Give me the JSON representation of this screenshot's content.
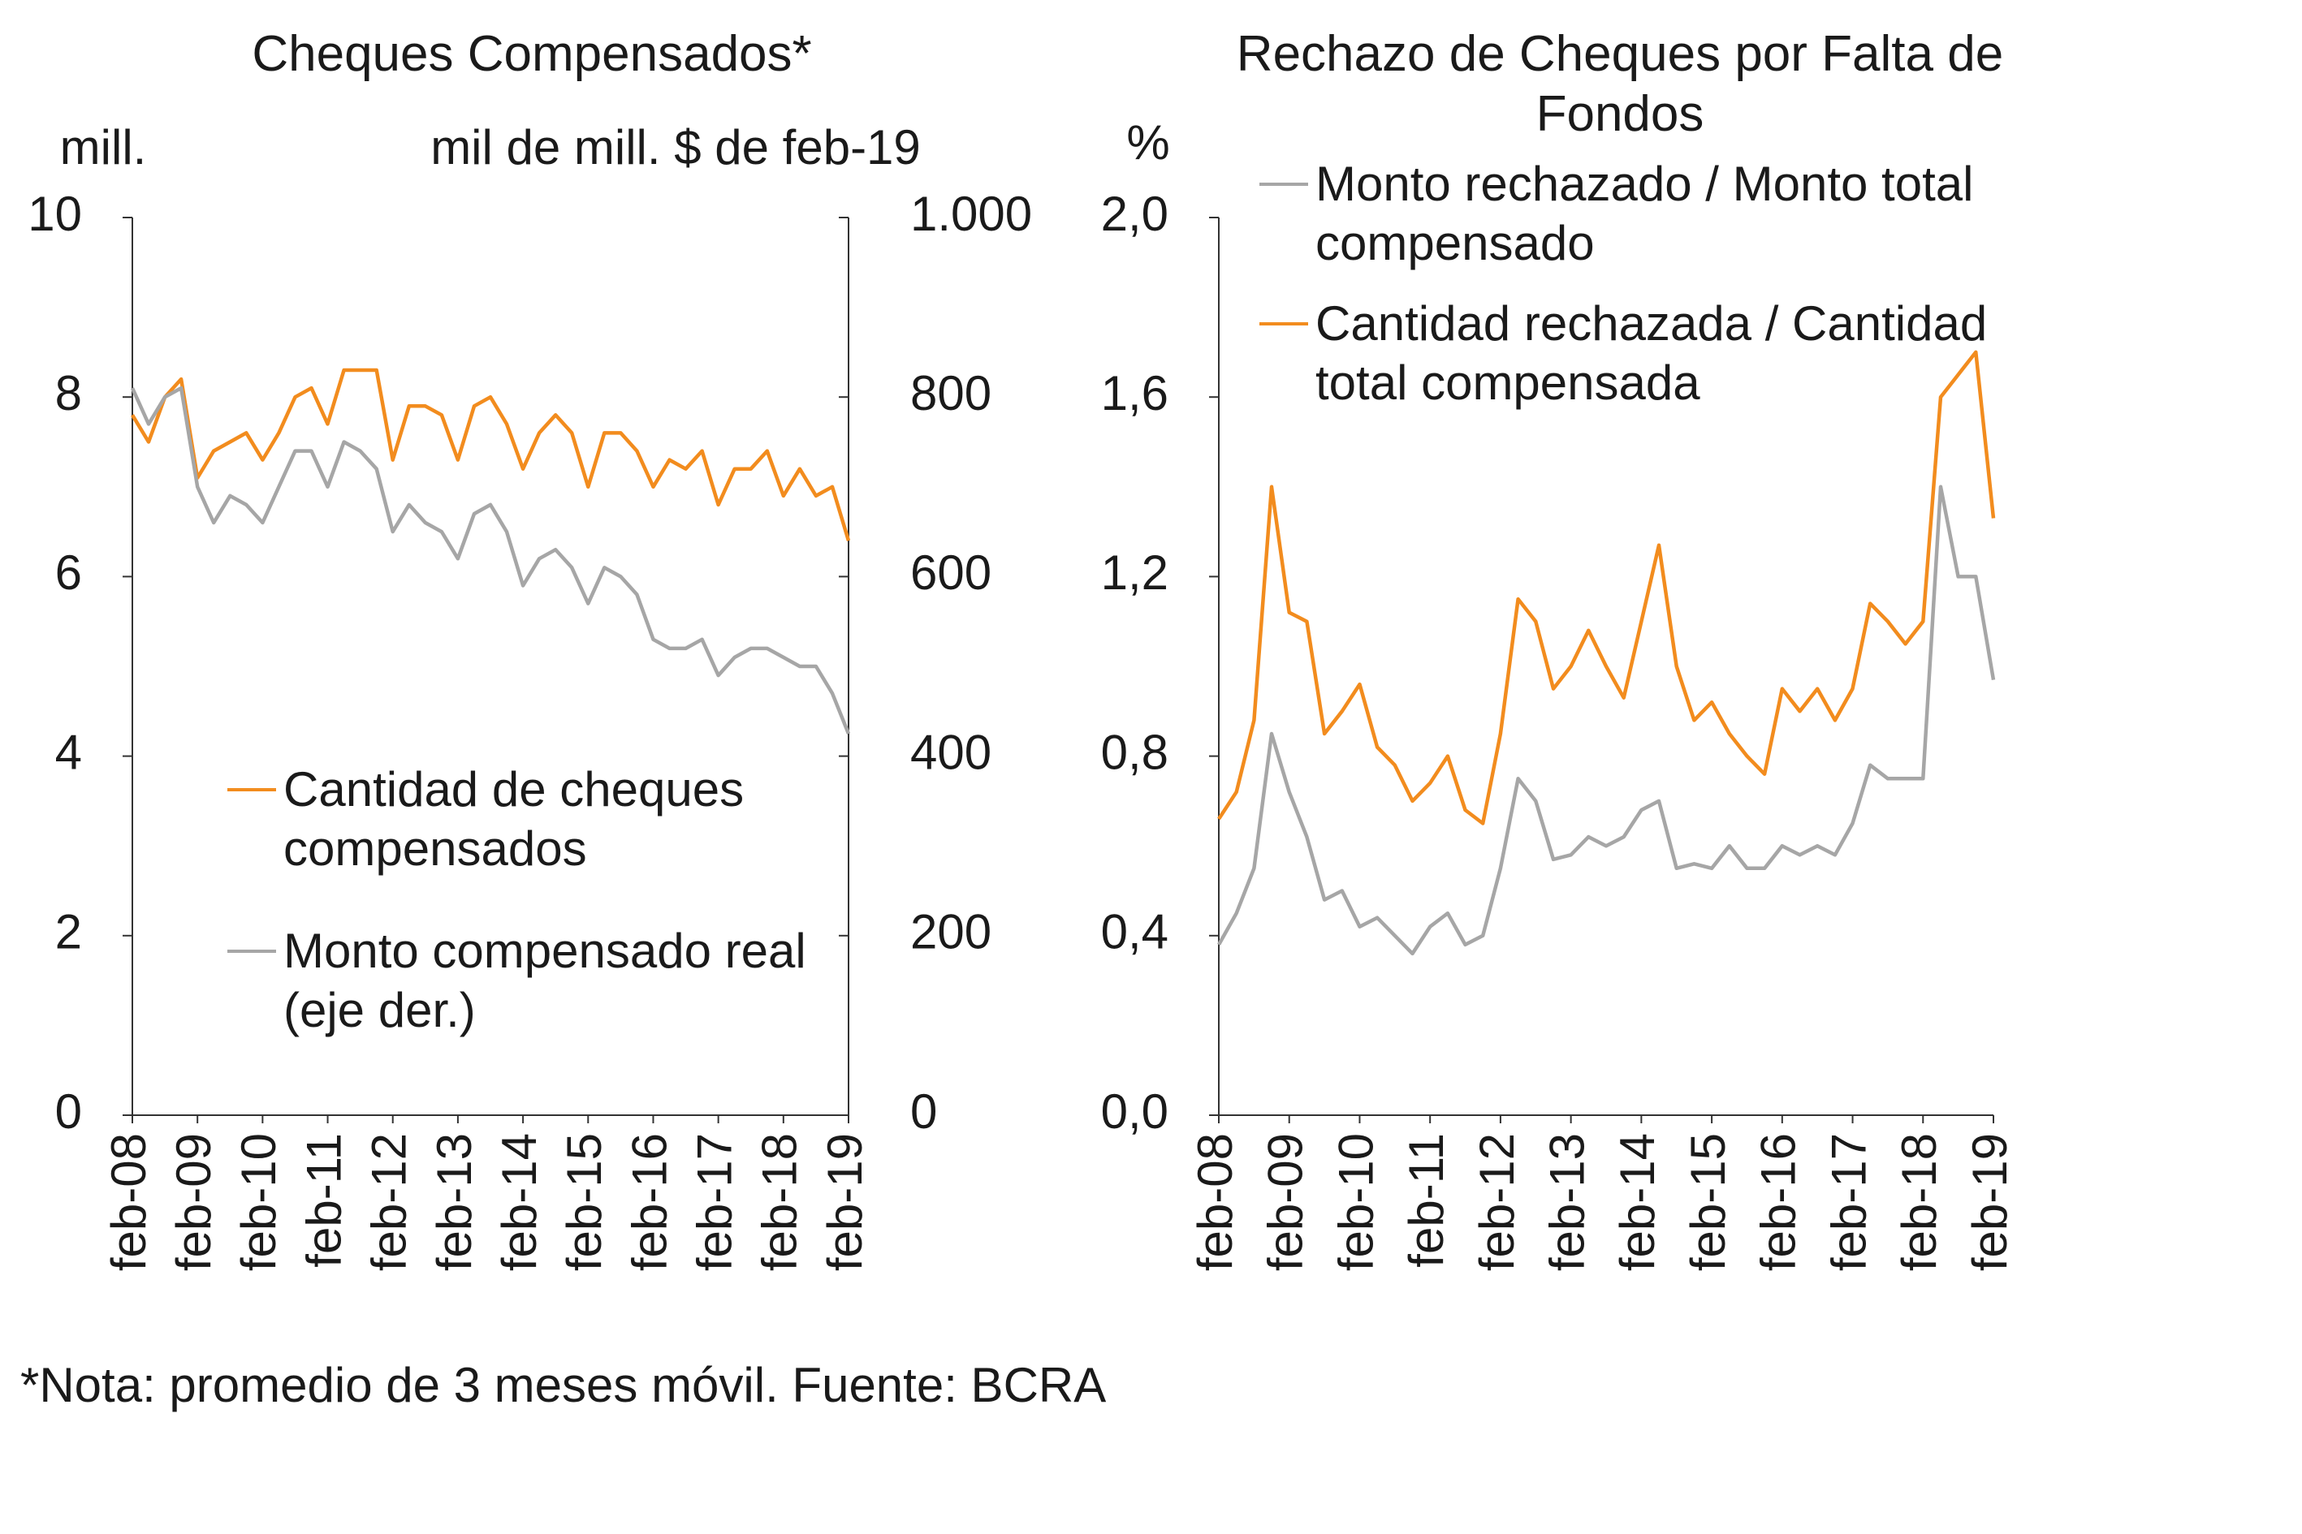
{
  "chart_data": [
    {
      "type": "line",
      "title": "Cheques Compensados*",
      "y_label": "mill.",
      "y2_label": "mil de mill. $ de feb-19",
      "categories": [
        "feb-08",
        null,
        null,
        null,
        "feb-09",
        null,
        null,
        null,
        "feb-10",
        null,
        null,
        null,
        "feb-11",
        null,
        null,
        null,
        "feb-12",
        null,
        null,
        null,
        "feb-13",
        null,
        null,
        null,
        "feb-14",
        null,
        null,
        null,
        "feb-15",
        null,
        null,
        null,
        "feb-16",
        null,
        null,
        null,
        "feb-17",
        null,
        null,
        null,
        "feb-18",
        null,
        null,
        null,
        "feb-19"
      ],
      "series": [
        {
          "name": "Cantidad de cheques compensados",
          "color": "#f28c1e",
          "values": [
            7.8,
            7.5,
            8.0,
            8.2,
            7.1,
            7.4,
            7.5,
            7.6,
            7.3,
            7.6,
            8.0,
            8.1,
            7.7,
            8.3,
            8.3,
            8.3,
            7.3,
            7.9,
            7.9,
            7.8,
            7.3,
            7.9,
            8.0,
            7.7,
            7.2,
            7.6,
            7.8,
            7.6,
            7.0,
            7.6,
            7.6,
            7.4,
            7.0,
            7.3,
            7.2,
            7.4,
            6.8,
            7.2,
            7.2,
            7.4,
            6.9,
            7.2,
            6.9,
            7.0,
            6.4
          ]
        },
        {
          "name": "Monto compensado real (eje der.)",
          "color": "#a6a6a6",
          "axis": "y2",
          "values": [
            810,
            770,
            800,
            810,
            700,
            660,
            690,
            680,
            660,
            700,
            740,
            740,
            700,
            750,
            740,
            720,
            650,
            680,
            660,
            650,
            620,
            670,
            680,
            650,
            590,
            620,
            630,
            610,
            570,
            610,
            600,
            580,
            530,
            520,
            520,
            530,
            490,
            510,
            520,
            520,
            510,
            500,
            500,
            470,
            425
          ]
        }
      ],
      "ylim": [
        0,
        10
      ],
      "yticks": [
        0,
        2,
        4,
        6,
        8,
        10
      ],
      "y2lim": [
        0,
        1000
      ],
      "y2ticks": [
        0,
        200,
        400,
        600,
        800,
        {
          "value": 1000,
          "label": "1.000"
        }
      ],
      "grid": false
    },
    {
      "type": "line",
      "title": "Rechazo de Cheques por Falta de Fondos",
      "y_label": "%",
      "categories": [
        "feb-08",
        null,
        null,
        null,
        "feb-09",
        null,
        null,
        null,
        "feb-10",
        null,
        null,
        null,
        "feb-11",
        null,
        null,
        null,
        "feb-12",
        null,
        null,
        null,
        "feb-13",
        null,
        null,
        null,
        "feb-14",
        null,
        null,
        null,
        "feb-15",
        null,
        null,
        null,
        "feb-16",
        null,
        null,
        null,
        "feb-17",
        null,
        null,
        null,
        "feb-18",
        null,
        null,
        null,
        "feb-19"
      ],
      "series": [
        {
          "name": "Monto rechazado / Monto total compensado",
          "color": "#a6a6a6",
          "values": [
            0.38,
            0.45,
            0.55,
            0.85,
            0.72,
            0.62,
            0.48,
            0.5,
            0.42,
            0.44,
            0.4,
            0.36,
            0.42,
            0.45,
            0.38,
            0.4,
            0.55,
            0.75,
            0.7,
            0.57,
            0.58,
            0.62,
            0.6,
            0.62,
            0.68,
            0.7,
            0.55,
            0.56,
            0.55,
            0.6,
            0.55,
            0.55,
            0.6,
            0.58,
            0.6,
            0.58,
            0.65,
            0.78,
            0.75,
            0.75,
            0.75,
            1.4,
            1.2,
            1.2,
            0.97
          ]
        },
        {
          "name": "Cantidad rechazada / Cantidad total compensada",
          "color": "#f28c1e",
          "values": [
            0.66,
            0.72,
            0.88,
            1.4,
            1.12,
            1.1,
            0.85,
            0.9,
            0.96,
            0.82,
            0.78,
            0.7,
            0.74,
            0.8,
            0.68,
            0.65,
            0.85,
            1.15,
            1.1,
            0.95,
            1.0,
            1.08,
            1.0,
            0.93,
            1.1,
            1.27,
            1.0,
            0.88,
            0.92,
            0.85,
            0.8,
            0.76,
            0.95,
            0.9,
            0.95,
            0.88,
            0.95,
            1.14,
            1.1,
            1.05,
            1.1,
            1.6,
            1.65,
            1.7,
            1.33
          ]
        }
      ],
      "ylim": [
        0,
        2
      ],
      "yticks": [
        {
          "value": 0,
          "label": "0,0"
        },
        {
          "value": 0.4,
          "label": "0,4"
        },
        {
          "value": 0.8,
          "label": "0,8"
        },
        {
          "value": 1.2,
          "label": "1,2"
        },
        {
          "value": 1.6,
          "label": "1,6"
        },
        {
          "value": 2,
          "label": "2,0"
        }
      ],
      "grid": false
    }
  ],
  "note": "*Nota: promedio de 3 meses móvil. Fuente: BCRA"
}
